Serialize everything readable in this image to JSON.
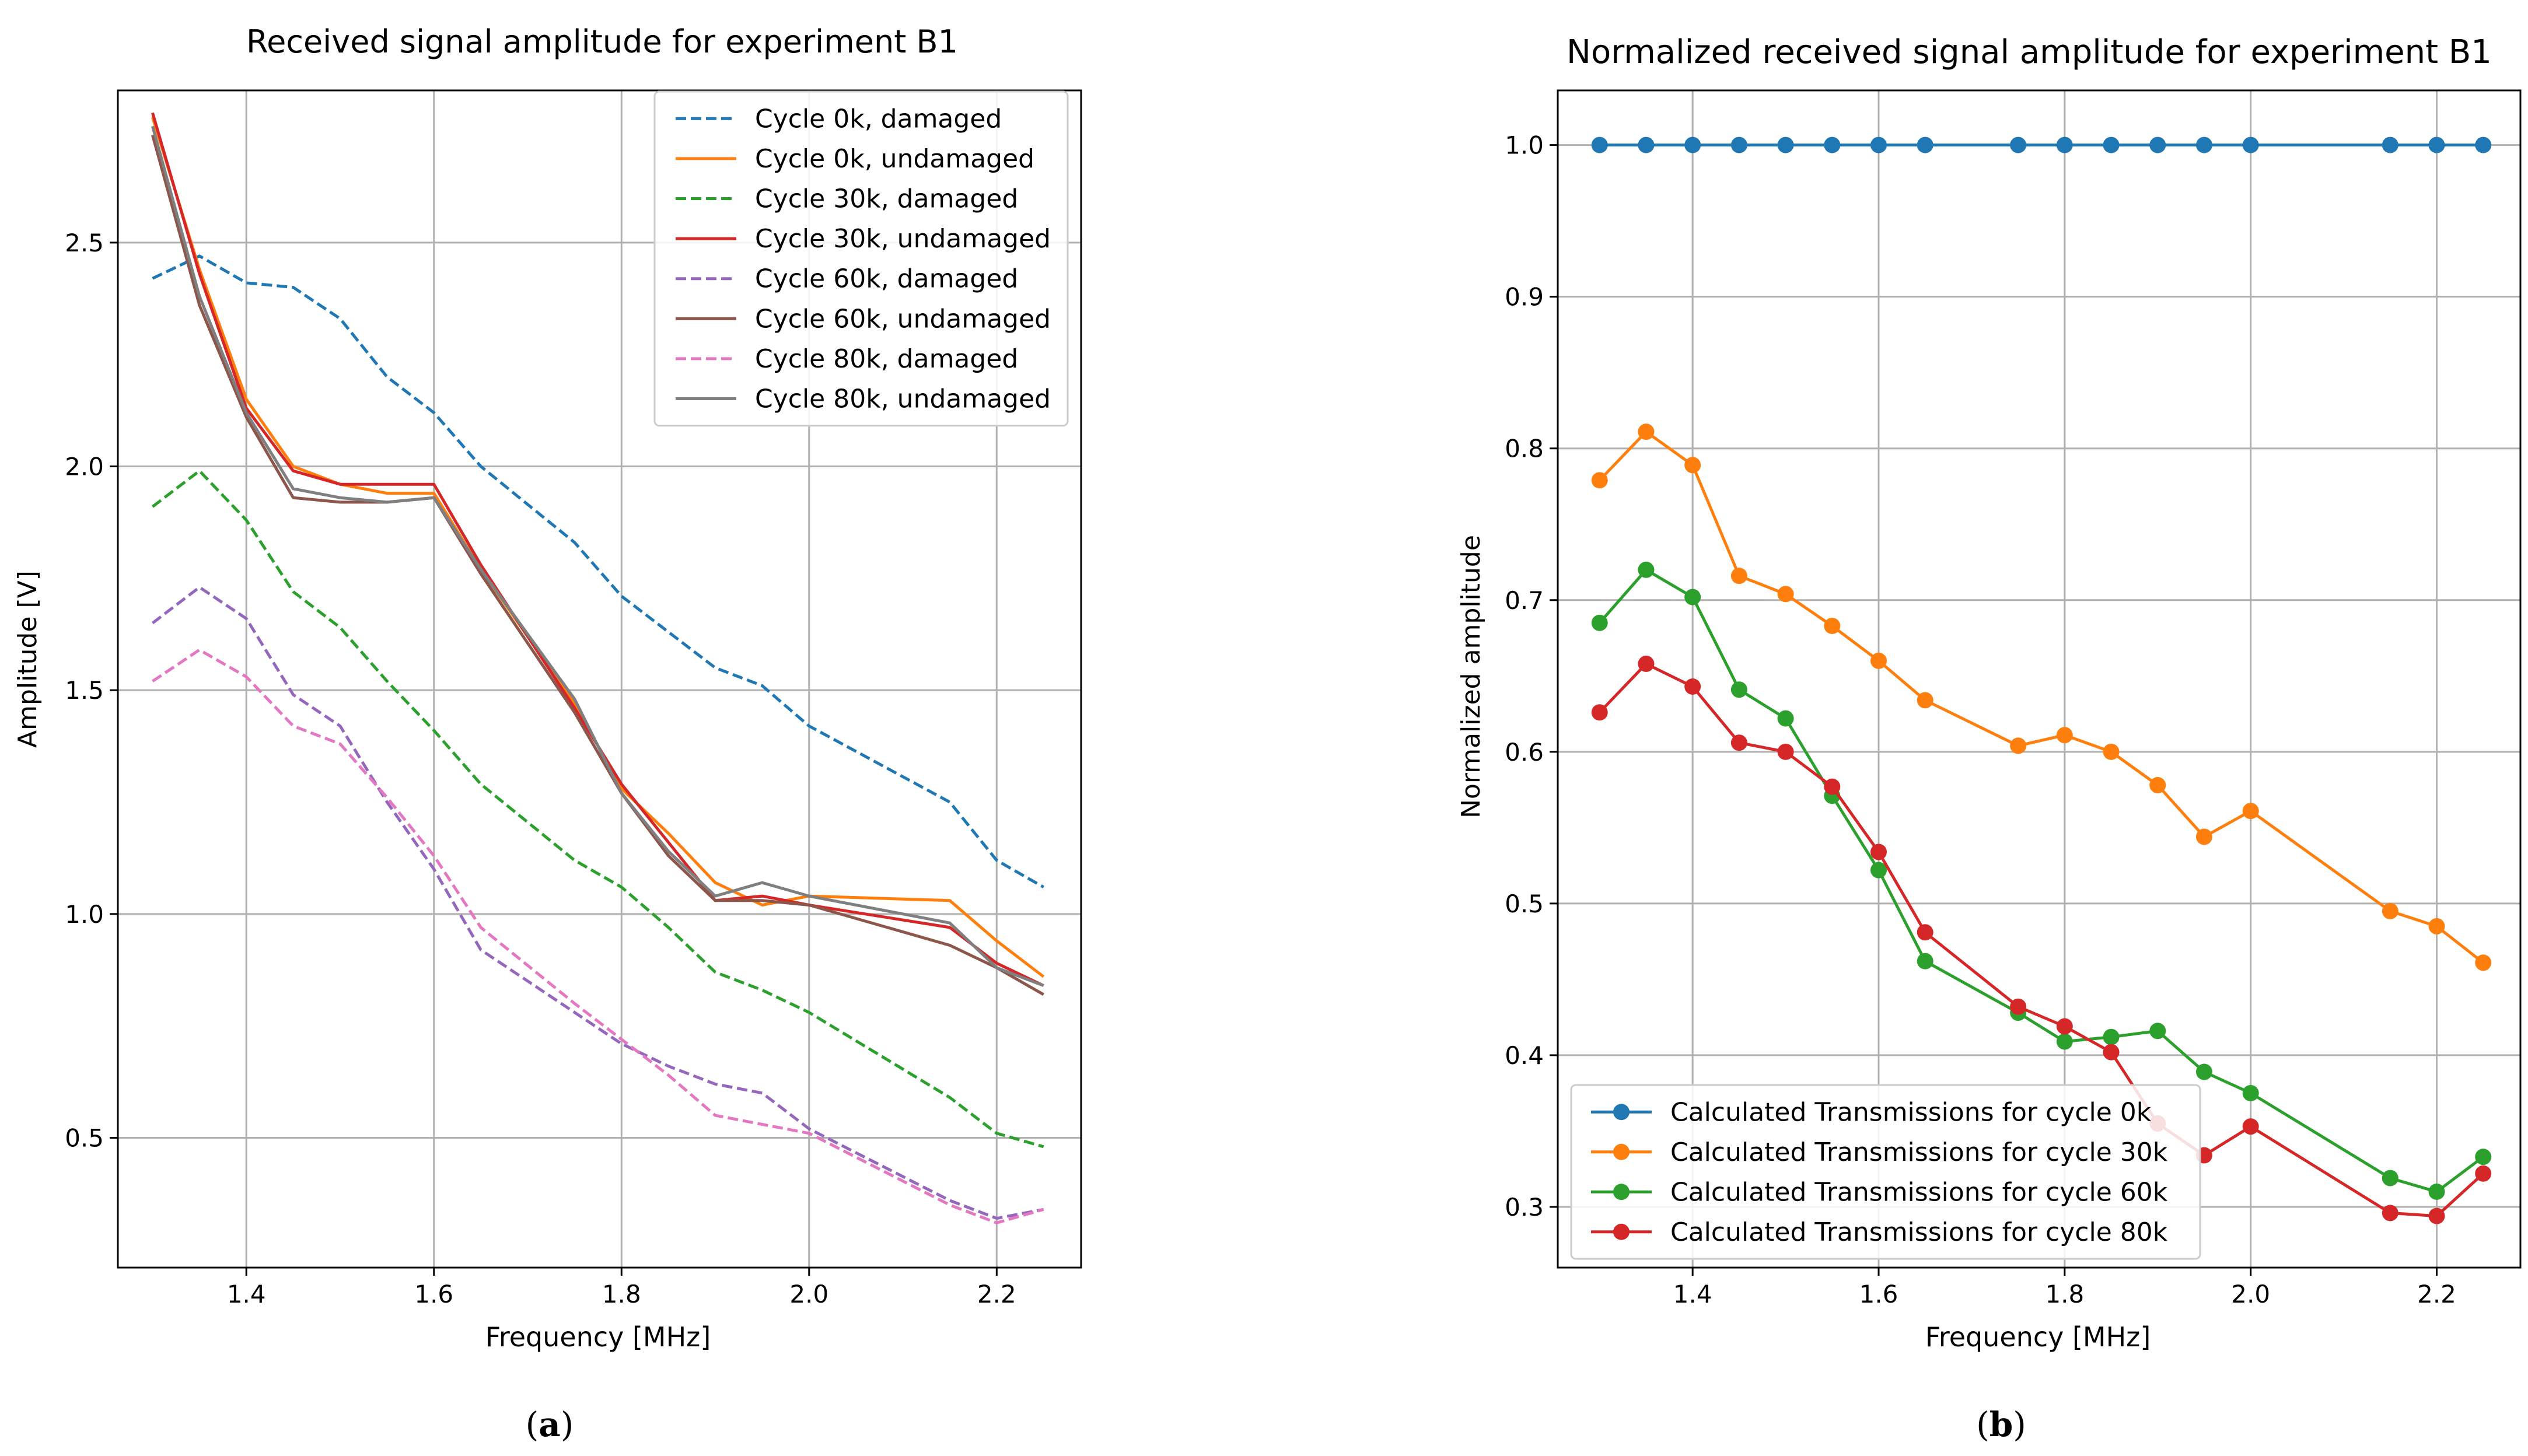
{
  "chart_data": [
    {
      "type": "line",
      "panel_label": "a",
      "title": "Received signal amplitude for experiment B1",
      "xlabel": "Frequency [MHz]",
      "ylabel": "Amplitude [V]",
      "xlim": [
        1.263,
        2.29
      ],
      "ylim": [
        0.21,
        2.84
      ],
      "xticks": [
        1.4,
        1.6,
        1.8,
        2.0,
        2.2
      ],
      "xtick_labels": [
        "1.4",
        "1.6",
        "1.8",
        "2.0",
        "2.2"
      ],
      "yticks": [
        0.5,
        1.0,
        1.5,
        2.0,
        2.5
      ],
      "ytick_labels": [
        "0.5",
        "1.0",
        "1.5",
        "2.0",
        "2.5"
      ],
      "grid": true,
      "legend_position": "top-right",
      "series": [
        {
          "name": "Cycle 0k, damaged",
          "color": "#1f77b4",
          "style": "dashed",
          "x": [
            1.3,
            1.35,
            1.4,
            1.45,
            1.5,
            1.55,
            1.6,
            1.65,
            1.75,
            1.8,
            1.85,
            1.9,
            1.95,
            2.0,
            2.15,
            2.2,
            2.25
          ],
          "values": [
            2.42,
            2.47,
            2.41,
            2.4,
            2.33,
            2.2,
            2.12,
            2.0,
            1.83,
            1.71,
            1.63,
            1.55,
            1.51,
            1.42,
            1.25,
            1.12,
            1.06
          ]
        },
        {
          "name": "Cycle 0k, undamaged",
          "color": "#ff7f0e",
          "style": "solid",
          "x": [
            1.3,
            1.35,
            1.4,
            1.45,
            1.5,
            1.55,
            1.6,
            1.65,
            1.75,
            1.8,
            1.85,
            1.9,
            1.95,
            2.0,
            2.15,
            2.2,
            2.25
          ],
          "values": [
            2.78,
            2.44,
            2.15,
            2.0,
            1.96,
            1.94,
            1.94,
            1.77,
            1.47,
            1.28,
            1.18,
            1.07,
            1.02,
            1.04,
            1.03,
            0.94,
            0.86
          ]
        },
        {
          "name": "Cycle 30k, damaged",
          "color": "#2ca02c",
          "style": "dashed",
          "x": [
            1.3,
            1.35,
            1.4,
            1.45,
            1.5,
            1.55,
            1.6,
            1.65,
            1.75,
            1.8,
            1.85,
            1.9,
            1.95,
            2.0,
            2.15,
            2.2,
            2.25
          ],
          "values": [
            1.91,
            1.99,
            1.88,
            1.72,
            1.64,
            1.52,
            1.41,
            1.29,
            1.12,
            1.06,
            0.97,
            0.87,
            0.83,
            0.78,
            0.59,
            0.51,
            0.48
          ]
        },
        {
          "name": "Cycle 30k, undamaged",
          "color": "#d62728",
          "style": "solid",
          "x": [
            1.3,
            1.35,
            1.4,
            1.45,
            1.5,
            1.55,
            1.6,
            1.65,
            1.75,
            1.8,
            1.85,
            1.9,
            1.95,
            2.0,
            2.15,
            2.2,
            2.25
          ],
          "values": [
            2.79,
            2.43,
            2.13,
            1.99,
            1.96,
            1.96,
            1.96,
            1.78,
            1.46,
            1.29,
            1.16,
            1.03,
            1.04,
            1.02,
            0.97,
            0.89,
            0.84
          ]
        },
        {
          "name": "Cycle 60k, damaged",
          "color": "#9467bd",
          "style": "dashed",
          "x": [
            1.3,
            1.35,
            1.4,
            1.45,
            1.5,
            1.55,
            1.6,
            1.65,
            1.75,
            1.8,
            1.85,
            1.9,
            1.95,
            2.0,
            2.15,
            2.2,
            2.25
          ],
          "values": [
            1.65,
            1.73,
            1.66,
            1.49,
            1.42,
            1.25,
            1.1,
            0.92,
            0.78,
            0.71,
            0.66,
            0.62,
            0.6,
            0.52,
            0.36,
            0.32,
            0.34
          ]
        },
        {
          "name": "Cycle 60k, undamaged",
          "color": "#8c564b",
          "style": "solid",
          "x": [
            1.3,
            1.35,
            1.4,
            1.45,
            1.5,
            1.55,
            1.6,
            1.65,
            1.75,
            1.8,
            1.85,
            1.9,
            1.95,
            2.0,
            2.15,
            2.2,
            2.25
          ],
          "values": [
            2.74,
            2.36,
            2.11,
            1.93,
            1.92,
            1.92,
            1.93,
            1.76,
            1.45,
            1.27,
            1.13,
            1.03,
            1.03,
            1.02,
            0.93,
            0.88,
            0.82
          ]
        },
        {
          "name": "Cycle 80k, damaged",
          "color": "#e377c2",
          "style": "dashed",
          "x": [
            1.3,
            1.35,
            1.4,
            1.45,
            1.5,
            1.55,
            1.6,
            1.65,
            1.75,
            1.8,
            1.85,
            1.9,
            1.95,
            2.0,
            2.15,
            2.2,
            2.25
          ],
          "values": [
            1.52,
            1.59,
            1.53,
            1.42,
            1.38,
            1.26,
            1.13,
            0.97,
            0.8,
            0.72,
            0.64,
            0.55,
            0.53,
            0.51,
            0.35,
            0.31,
            0.34
          ]
        },
        {
          "name": "Cycle 80k, undamaged",
          "color": "#7f7f7f",
          "style": "solid",
          "x": [
            1.3,
            1.35,
            1.4,
            1.45,
            1.5,
            1.55,
            1.6,
            1.65,
            1.75,
            1.8,
            1.85,
            1.9,
            1.95,
            2.0,
            2.15,
            2.2,
            2.25
          ],
          "values": [
            2.76,
            2.38,
            2.12,
            1.95,
            1.93,
            1.92,
            1.93,
            1.77,
            1.48,
            1.27,
            1.14,
            1.04,
            1.07,
            1.04,
            0.98,
            0.88,
            0.84
          ]
        }
      ]
    },
    {
      "type": "line",
      "panel_label": "b",
      "title": "Normalized received signal amplitude for experiment B1",
      "xlabel": "Frequency [MHz]",
      "ylabel": "Normalized amplitude",
      "xlim": [
        1.255,
        2.29
      ],
      "ylim": [
        0.26,
        1.036
      ],
      "xticks": [
        1.4,
        1.6,
        1.8,
        2.0,
        2.2
      ],
      "xtick_labels": [
        "1.4",
        "1.6",
        "1.8",
        "2.0",
        "2.2"
      ],
      "yticks": [
        0.3,
        0.4,
        0.5,
        0.6,
        0.7,
        0.8,
        0.9,
        1.0
      ],
      "ytick_labels": [
        "0.3",
        "0.4",
        "0.5",
        "0.6",
        "0.7",
        "0.8",
        "0.9",
        "1.0"
      ],
      "grid": true,
      "legend_position": "lower-left",
      "series": [
        {
          "name": "Calculated Transmissions for cycle 0k",
          "color": "#1f77b4",
          "marker": "circle",
          "x": [
            1.3,
            1.35,
            1.4,
            1.45,
            1.5,
            1.55,
            1.6,
            1.65,
            1.75,
            1.8,
            1.85,
            1.9,
            1.95,
            2.0,
            2.15,
            2.2,
            2.25
          ],
          "values": [
            1.0,
            1.0,
            1.0,
            1.0,
            1.0,
            1.0,
            1.0,
            1.0,
            1.0,
            1.0,
            1.0,
            1.0,
            1.0,
            1.0,
            1.0,
            1.0,
            1.0
          ]
        },
        {
          "name": "Calculated Transmissions for cycle 30k",
          "color": "#ff7f0e",
          "marker": "circle",
          "x": [
            1.3,
            1.35,
            1.4,
            1.45,
            1.5,
            1.55,
            1.6,
            1.65,
            1.75,
            1.8,
            1.85,
            1.9,
            1.95,
            2.0,
            2.15,
            2.2,
            2.25
          ],
          "values": [
            0.779,
            0.811,
            0.789,
            0.716,
            0.704,
            0.683,
            0.66,
            0.634,
            0.604,
            0.611,
            0.6,
            0.578,
            0.544,
            0.561,
            0.495,
            0.485,
            0.461
          ]
        },
        {
          "name": "Calculated Transmissions for cycle 60k",
          "color": "#2ca02c",
          "marker": "circle",
          "x": [
            1.3,
            1.35,
            1.4,
            1.45,
            1.5,
            1.55,
            1.6,
            1.65,
            1.75,
            1.8,
            1.85,
            1.9,
            1.95,
            2.0,
            2.15,
            2.2,
            2.25
          ],
          "values": [
            0.685,
            0.72,
            0.702,
            0.641,
            0.622,
            0.571,
            0.522,
            0.462,
            0.428,
            0.409,
            0.412,
            0.416,
            0.389,
            0.375,
            0.319,
            0.31,
            0.333
          ]
        },
        {
          "name": "Calculated Transmissions for cycle 80k",
          "color": "#d62728",
          "marker": "circle",
          "x": [
            1.3,
            1.35,
            1.4,
            1.45,
            1.5,
            1.55,
            1.6,
            1.65,
            1.75,
            1.8,
            1.85,
            1.9,
            1.95,
            2.0,
            2.15,
            2.2,
            2.25
          ],
          "values": [
            0.626,
            0.658,
            0.643,
            0.606,
            0.6,
            0.577,
            0.534,
            0.481,
            0.432,
            0.419,
            0.402,
            0.355,
            0.334,
            0.353,
            0.296,
            0.294,
            0.322
          ]
        }
      ]
    }
  ]
}
